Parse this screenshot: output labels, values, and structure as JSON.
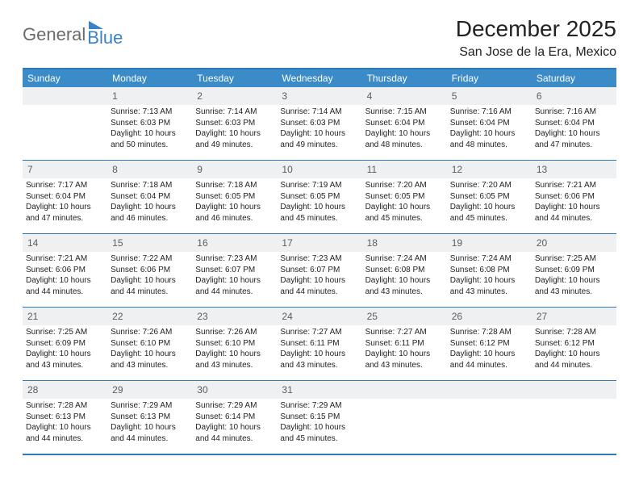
{
  "logo": {
    "part1": "General",
    "part2": "Blue"
  },
  "title": "December 2025",
  "location": "San Jose de la Era, Mexico",
  "weekdays": [
    "Sunday",
    "Monday",
    "Tuesday",
    "Wednesday",
    "Thursday",
    "Friday",
    "Saturday"
  ],
  "header_bg": "#3b8bc9",
  "header_text": "#ffffff",
  "daynum_bg": "#eef0f1",
  "border_color": "#2e7ab8",
  "weeks": [
    [
      {
        "n": "",
        "lines": []
      },
      {
        "n": "1",
        "lines": [
          "Sunrise: 7:13 AM",
          "Sunset: 6:03 PM",
          "Daylight: 10 hours",
          "and 50 minutes."
        ]
      },
      {
        "n": "2",
        "lines": [
          "Sunrise: 7:14 AM",
          "Sunset: 6:03 PM",
          "Daylight: 10 hours",
          "and 49 minutes."
        ]
      },
      {
        "n": "3",
        "lines": [
          "Sunrise: 7:14 AM",
          "Sunset: 6:03 PM",
          "Daylight: 10 hours",
          "and 49 minutes."
        ]
      },
      {
        "n": "4",
        "lines": [
          "Sunrise: 7:15 AM",
          "Sunset: 6:04 PM",
          "Daylight: 10 hours",
          "and 48 minutes."
        ]
      },
      {
        "n": "5",
        "lines": [
          "Sunrise: 7:16 AM",
          "Sunset: 6:04 PM",
          "Daylight: 10 hours",
          "and 48 minutes."
        ]
      },
      {
        "n": "6",
        "lines": [
          "Sunrise: 7:16 AM",
          "Sunset: 6:04 PM",
          "Daylight: 10 hours",
          "and 47 minutes."
        ]
      }
    ],
    [
      {
        "n": "7",
        "lines": [
          "Sunrise: 7:17 AM",
          "Sunset: 6:04 PM",
          "Daylight: 10 hours",
          "and 47 minutes."
        ]
      },
      {
        "n": "8",
        "lines": [
          "Sunrise: 7:18 AM",
          "Sunset: 6:04 PM",
          "Daylight: 10 hours",
          "and 46 minutes."
        ]
      },
      {
        "n": "9",
        "lines": [
          "Sunrise: 7:18 AM",
          "Sunset: 6:05 PM",
          "Daylight: 10 hours",
          "and 46 minutes."
        ]
      },
      {
        "n": "10",
        "lines": [
          "Sunrise: 7:19 AM",
          "Sunset: 6:05 PM",
          "Daylight: 10 hours",
          "and 45 minutes."
        ]
      },
      {
        "n": "11",
        "lines": [
          "Sunrise: 7:20 AM",
          "Sunset: 6:05 PM",
          "Daylight: 10 hours",
          "and 45 minutes."
        ]
      },
      {
        "n": "12",
        "lines": [
          "Sunrise: 7:20 AM",
          "Sunset: 6:05 PM",
          "Daylight: 10 hours",
          "and 45 minutes."
        ]
      },
      {
        "n": "13",
        "lines": [
          "Sunrise: 7:21 AM",
          "Sunset: 6:06 PM",
          "Daylight: 10 hours",
          "and 44 minutes."
        ]
      }
    ],
    [
      {
        "n": "14",
        "lines": [
          "Sunrise: 7:21 AM",
          "Sunset: 6:06 PM",
          "Daylight: 10 hours",
          "and 44 minutes."
        ]
      },
      {
        "n": "15",
        "lines": [
          "Sunrise: 7:22 AM",
          "Sunset: 6:06 PM",
          "Daylight: 10 hours",
          "and 44 minutes."
        ]
      },
      {
        "n": "16",
        "lines": [
          "Sunrise: 7:23 AM",
          "Sunset: 6:07 PM",
          "Daylight: 10 hours",
          "and 44 minutes."
        ]
      },
      {
        "n": "17",
        "lines": [
          "Sunrise: 7:23 AM",
          "Sunset: 6:07 PM",
          "Daylight: 10 hours",
          "and 44 minutes."
        ]
      },
      {
        "n": "18",
        "lines": [
          "Sunrise: 7:24 AM",
          "Sunset: 6:08 PM",
          "Daylight: 10 hours",
          "and 43 minutes."
        ]
      },
      {
        "n": "19",
        "lines": [
          "Sunrise: 7:24 AM",
          "Sunset: 6:08 PM",
          "Daylight: 10 hours",
          "and 43 minutes."
        ]
      },
      {
        "n": "20",
        "lines": [
          "Sunrise: 7:25 AM",
          "Sunset: 6:09 PM",
          "Daylight: 10 hours",
          "and 43 minutes."
        ]
      }
    ],
    [
      {
        "n": "21",
        "lines": [
          "Sunrise: 7:25 AM",
          "Sunset: 6:09 PM",
          "Daylight: 10 hours",
          "and 43 minutes."
        ]
      },
      {
        "n": "22",
        "lines": [
          "Sunrise: 7:26 AM",
          "Sunset: 6:10 PM",
          "Daylight: 10 hours",
          "and 43 minutes."
        ]
      },
      {
        "n": "23",
        "lines": [
          "Sunrise: 7:26 AM",
          "Sunset: 6:10 PM",
          "Daylight: 10 hours",
          "and 43 minutes."
        ]
      },
      {
        "n": "24",
        "lines": [
          "Sunrise: 7:27 AM",
          "Sunset: 6:11 PM",
          "Daylight: 10 hours",
          "and 43 minutes."
        ]
      },
      {
        "n": "25",
        "lines": [
          "Sunrise: 7:27 AM",
          "Sunset: 6:11 PM",
          "Daylight: 10 hours",
          "and 43 minutes."
        ]
      },
      {
        "n": "26",
        "lines": [
          "Sunrise: 7:28 AM",
          "Sunset: 6:12 PM",
          "Daylight: 10 hours",
          "and 44 minutes."
        ]
      },
      {
        "n": "27",
        "lines": [
          "Sunrise: 7:28 AM",
          "Sunset: 6:12 PM",
          "Daylight: 10 hours",
          "and 44 minutes."
        ]
      }
    ],
    [
      {
        "n": "28",
        "lines": [
          "Sunrise: 7:28 AM",
          "Sunset: 6:13 PM",
          "Daylight: 10 hours",
          "and 44 minutes."
        ]
      },
      {
        "n": "29",
        "lines": [
          "Sunrise: 7:29 AM",
          "Sunset: 6:13 PM",
          "Daylight: 10 hours",
          "and 44 minutes."
        ]
      },
      {
        "n": "30",
        "lines": [
          "Sunrise: 7:29 AM",
          "Sunset: 6:14 PM",
          "Daylight: 10 hours",
          "and 44 minutes."
        ]
      },
      {
        "n": "31",
        "lines": [
          "Sunrise: 7:29 AM",
          "Sunset: 6:15 PM",
          "Daylight: 10 hours",
          "and 45 minutes."
        ]
      },
      {
        "n": "",
        "lines": []
      },
      {
        "n": "",
        "lines": []
      },
      {
        "n": "",
        "lines": []
      }
    ]
  ]
}
